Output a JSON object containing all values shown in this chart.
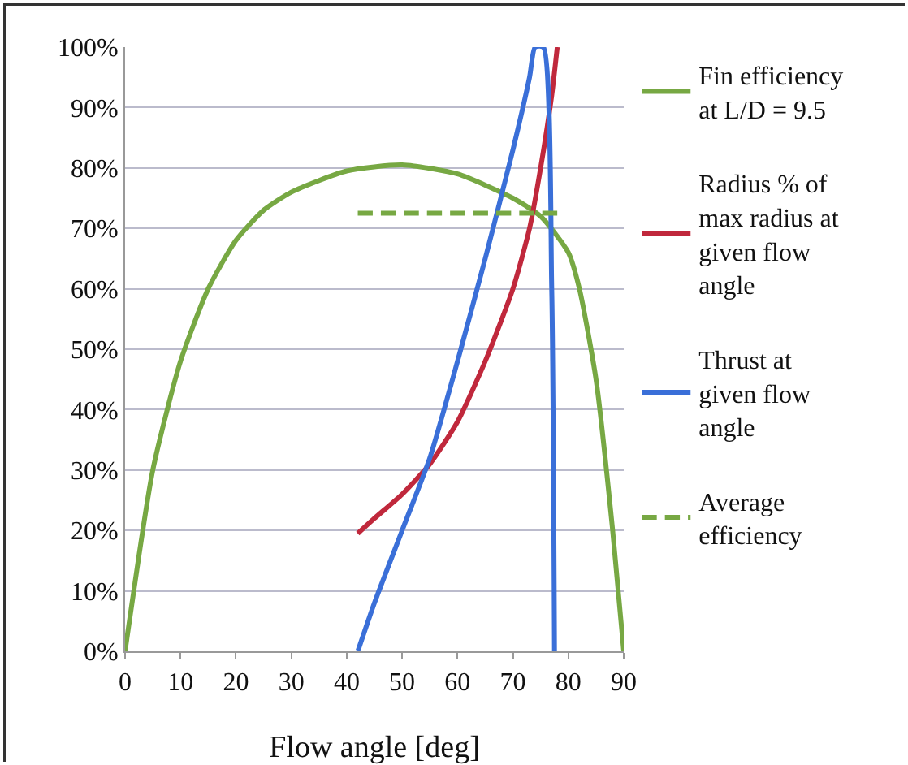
{
  "chart_data": {
    "type": "line",
    "xlabel": "Flow angle [deg]",
    "xlim": [
      0,
      90
    ],
    "xticks": [
      0,
      10,
      20,
      30,
      40,
      50,
      60,
      70,
      80,
      90
    ],
    "ylim": [
      0,
      100
    ],
    "yticks": [
      {
        "value": 0,
        "label": "0%"
      },
      {
        "value": 10,
        "label": "10%"
      },
      {
        "value": 20,
        "label": "20%"
      },
      {
        "value": 30,
        "label": "30%"
      },
      {
        "value": 40,
        "label": "40%"
      },
      {
        "value": 50,
        "label": "50%"
      },
      {
        "value": 60,
        "label": "60%"
      },
      {
        "value": 70,
        "label": "70%"
      },
      {
        "value": 80,
        "label": "80%"
      },
      {
        "value": 90,
        "label": "90%"
      },
      {
        "value": 100,
        "label": "100%"
      }
    ],
    "grid": "y",
    "legend": "right",
    "marker": "none",
    "series": [
      {
        "name": "Fin efficiency at L/D = 9.5",
        "color": "#77a843",
        "x": [
          0,
          5,
          10,
          15,
          20,
          25,
          30,
          40,
          50,
          60,
          70,
          75,
          80,
          82,
          85,
          88,
          90
        ],
        "values": [
          0,
          30,
          48,
          60,
          68,
          73,
          76,
          79.5,
          80.5,
          79,
          75,
          72,
          66,
          60,
          45,
          20,
          0
        ]
      },
      {
        "name": "Radius % of max radius at given flow angle",
        "color": "#c0283c",
        "x": [
          42,
          45,
          50,
          55,
          60,
          65,
          70,
          73,
          75,
          77,
          78
        ],
        "values": [
          19.5,
          22,
          26,
          31,
          38,
          48,
          60,
          70,
          80,
          92,
          100
        ]
      },
      {
        "name": "Thrust at given flow angle",
        "color": "#3a6fd8",
        "x": [
          42,
          45,
          50,
          55,
          60,
          65,
          70,
          73,
          74,
          75.5,
          77,
          77.5
        ],
        "values": [
          0,
          8,
          20,
          32,
          48,
          65,
          83,
          95,
          100,
          100,
          60,
          0
        ]
      },
      {
        "name": "Average efficiency",
        "color": "#77a843",
        "line_style": "dashed",
        "x": [
          42,
          78
        ],
        "values": [
          72.5,
          72.5
        ]
      }
    ]
  }
}
